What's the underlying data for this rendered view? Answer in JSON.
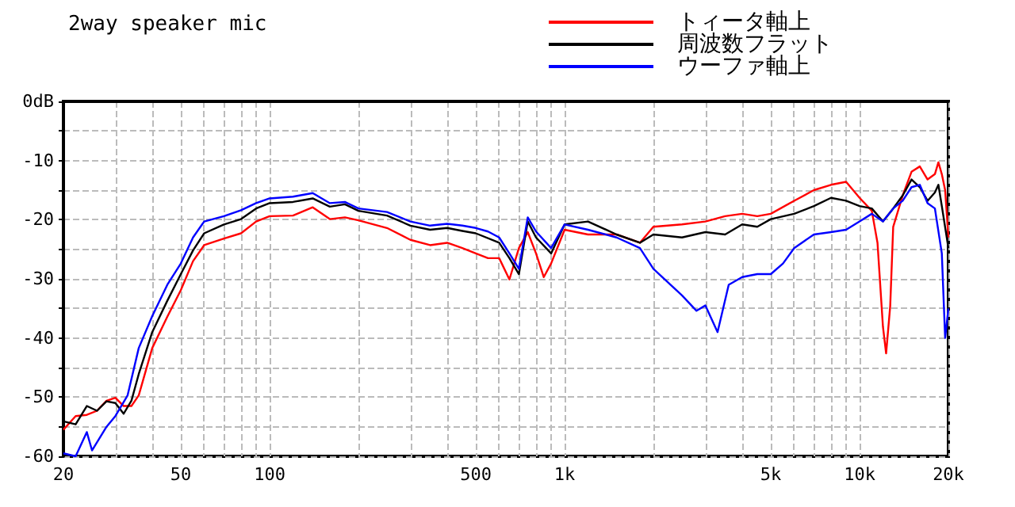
{
  "chart_data": {
    "type": "line",
    "title": "2way speaker mic",
    "log": "x",
    "grid": true,
    "legend": "top right",
    "marker": "none",
    "line_style": "solid",
    "xlim": [
      20,
      20000
    ],
    "ylim": [
      -60,
      0
    ],
    "xticks": [
      20,
      {
        "value": 30,
        "label": null
      },
      {
        "value": 40,
        "label": null
      },
      50,
      {
        "value": 60,
        "label": null
      },
      {
        "value": 70,
        "label": null
      },
      {
        "value": 80,
        "label": null
      },
      {
        "value": 90,
        "label": null
      },
      100,
      {
        "value": 200,
        "label": null
      },
      {
        "value": 300,
        "label": null
      },
      {
        "value": 400,
        "label": null
      },
      500,
      {
        "value": 600,
        "label": null
      },
      {
        "value": 700,
        "label": null
      },
      {
        "value": 800,
        "label": null
      },
      {
        "value": 900,
        "label": null
      },
      {
        "value": 1000,
        "label": "1k"
      },
      {
        "value": 2000,
        "label": null
      },
      {
        "value": 3000,
        "label": null
      },
      {
        "value": 4000,
        "label": null
      },
      {
        "value": 5000,
        "label": "5k"
      },
      {
        "value": 6000,
        "label": null
      },
      {
        "value": 7000,
        "label": null
      },
      {
        "value": 8000,
        "label": null
      },
      {
        "value": 9000,
        "label": null
      },
      {
        "value": 10000,
        "label": "10k"
      },
      {
        "value": 20000,
        "label": "20k"
      }
    ],
    "yticks": [
      -60,
      {
        "value": -55,
        "label": null
      },
      -50,
      {
        "value": -45,
        "label": null
      },
      -40,
      {
        "value": -35,
        "label": null
      },
      -30,
      {
        "value": -25,
        "label": null
      },
      -20,
      {
        "value": -15,
        "label": null
      },
      -10,
      {
        "value": -5,
        "label": null
      },
      {
        "value": 0,
        "label": "0dB"
      }
    ],
    "series": [
      {
        "name": "トィータ軸上",
        "color": "#ff0000",
        "x": [
          20,
          22,
          24,
          26,
          28,
          30,
          32,
          34,
          36,
          40,
          45,
          50,
          55,
          60,
          70,
          80,
          90,
          100,
          120,
          140,
          160,
          180,
          200,
          250,
          300,
          350,
          400,
          450,
          500,
          550,
          600,
          650,
          700,
          750,
          800,
          850,
          900,
          1000,
          1200,
          1500,
          1800,
          2000,
          2500,
          3000,
          3500,
          4000,
          4500,
          5000,
          6000,
          7000,
          8000,
          9000,
          10000,
          11000,
          11500,
          12000,
          12300,
          12700,
          13000,
          14000,
          15000,
          16000,
          17000,
          18000,
          18500,
          19000,
          19500,
          20000
        ],
        "values": [
          -55.5,
          -53.2,
          -53,
          -52.3,
          -50.6,
          -50.1,
          -51.5,
          -51.5,
          -49.7,
          -41.7,
          -36.4,
          -31.9,
          -27,
          -24.3,
          -23.2,
          -22.3,
          -20.3,
          -19.4,
          -19.3,
          -17.9,
          -19.9,
          -19.6,
          -20.1,
          -21.4,
          -23.4,
          -24.3,
          -23.9,
          -24.8,
          -25.7,
          -26.5,
          -26.5,
          -30.1,
          -24.8,
          -22.1,
          -25.7,
          -29.7,
          -27.4,
          -21.7,
          -22.5,
          -22.5,
          -23.9,
          -21.2,
          -20.8,
          -20.3,
          -19.4,
          -19,
          -19.4,
          -19,
          -16.8,
          -15,
          -14.1,
          -13.6,
          -16.3,
          -18.5,
          -23.9,
          -38.1,
          -42.6,
          -34.6,
          -21.2,
          -15.9,
          -11.9,
          -11,
          -13.2,
          -12.3,
          -10.3,
          -12.3,
          -15,
          -23
        ]
      },
      {
        "name": "周波数フラット",
        "color": "#000000",
        "x": [
          20,
          22,
          24,
          26,
          28,
          30,
          32,
          34,
          36,
          40,
          45,
          50,
          55,
          60,
          70,
          80,
          90,
          100,
          120,
          140,
          160,
          180,
          200,
          250,
          300,
          350,
          400,
          450,
          500,
          600,
          650,
          700,
          750,
          800,
          900,
          1000,
          1200,
          1500,
          1800,
          2000,
          2500,
          3000,
          3500,
          4000,
          4500,
          5000,
          6000,
          7000,
          8000,
          9000,
          10000,
          11000,
          12000,
          13000,
          14000,
          15000,
          16000,
          17000,
          18000,
          18500,
          19000,
          20000
        ],
        "values": [
          -54.1,
          -54.6,
          -51.5,
          -52.3,
          -50.7,
          -51,
          -52.8,
          -50.6,
          -46.1,
          -39,
          -33.7,
          -29.2,
          -25.2,
          -22.3,
          -20.8,
          -19.9,
          -18.1,
          -17.2,
          -17,
          -16.4,
          -17.8,
          -17.4,
          -18.5,
          -19.3,
          -21,
          -21.7,
          -21.4,
          -21.9,
          -22.3,
          -23.9,
          -26.5,
          -29.2,
          -20.3,
          -23,
          -25.7,
          -20.8,
          -20.3,
          -22.5,
          -23.9,
          -22.5,
          -23,
          -22.1,
          -22.5,
          -20.8,
          -21.2,
          -19.9,
          -19,
          -17.7,
          -16.3,
          -16.8,
          -17.7,
          -18.1,
          -20.3,
          -18.1,
          -15.9,
          -13.2,
          -14.5,
          -16.8,
          -15.4,
          -14.1,
          -17.7,
          -24.8
        ]
      },
      {
        "name": "ウーファ軸上",
        "color": "#0000ff",
        "x": [
          20,
          22,
          24,
          25,
          28,
          30,
          33,
          36,
          40,
          45,
          50,
          55,
          60,
          70,
          80,
          90,
          100,
          120,
          140,
          160,
          180,
          200,
          250,
          300,
          350,
          400,
          450,
          500,
          550,
          600,
          650,
          700,
          750,
          800,
          900,
          1000,
          1200,
          1500,
          1800,
          2000,
          2500,
          2800,
          3000,
          3300,
          3600,
          4000,
          4500,
          5000,
          5500,
          6000,
          7000,
          8000,
          9000,
          10000,
          11000,
          12000,
          13000,
          14000,
          15000,
          16000,
          17000,
          18000,
          19000,
          19500,
          20000
        ],
        "values": [
          -59.5,
          -60,
          -55.9,
          -59,
          -55,
          -53.2,
          -49.7,
          -41.7,
          -36.3,
          -31,
          -27.4,
          -23,
          -20.3,
          -19.4,
          -18.4,
          -17.2,
          -16.4,
          -16.1,
          -15.5,
          -17.2,
          -17,
          -18.1,
          -18.7,
          -20.3,
          -21,
          -20.7,
          -21,
          -21.4,
          -22,
          -23,
          -25.7,
          -28.3,
          -19.6,
          -22,
          -24.8,
          -20.8,
          -21.7,
          -23,
          -24.8,
          -28.3,
          -32.8,
          -35.4,
          -34.5,
          -39,
          -31,
          -29.7,
          -29.2,
          -29.2,
          -27.4,
          -24.8,
          -22.5,
          -22.1,
          -21.7,
          -20.3,
          -19,
          -20.3,
          -18.1,
          -16.8,
          -14.5,
          -14.1,
          -17.2,
          -18.1,
          -25.7,
          -40,
          -35
        ]
      }
    ]
  }
}
